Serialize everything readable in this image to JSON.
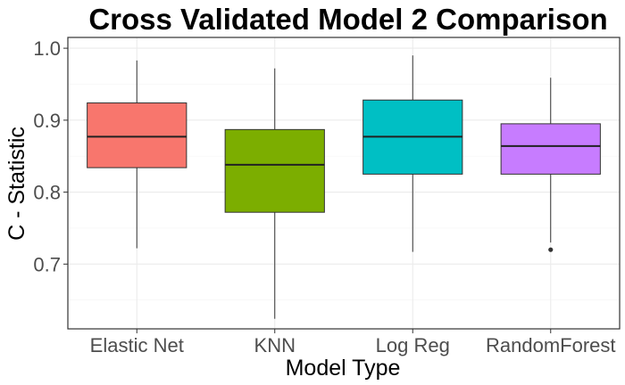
{
  "chart_data": {
    "type": "boxplot",
    "title": "Cross Validated Model 2 Comparison",
    "xlabel": "Model Type",
    "ylabel": "C - Statistic",
    "ylim": [
      0.61,
      1.015
    ],
    "yticks": [
      0.7,
      0.8,
      0.9,
      1.0
    ],
    "ytick_labels": [
      "0.7",
      "0.8",
      "0.9",
      "1.0"
    ],
    "grid": true,
    "legend": "none",
    "categories": [
      "Elastic Net",
      "KNN",
      "Log Reg",
      "RandomForest"
    ],
    "series": [
      {
        "category": "Elastic Net",
        "color": "#F8766D",
        "whisker_low": 0.722,
        "q1": 0.834,
        "median": 0.877,
        "q3": 0.924,
        "whisker_high": 0.983,
        "outliers": []
      },
      {
        "category": "KNN",
        "color": "#7CAE00",
        "whisker_low": 0.624,
        "q1": 0.772,
        "median": 0.838,
        "q3": 0.887,
        "whisker_high": 0.972,
        "outliers": []
      },
      {
        "category": "Log Reg",
        "color": "#00BFC4",
        "whisker_low": 0.717,
        "q1": 0.825,
        "median": 0.877,
        "q3": 0.928,
        "whisker_high": 0.99,
        "outliers": []
      },
      {
        "category": "RandomForest",
        "color": "#C77CFF",
        "whisker_low": 0.73,
        "q1": 0.825,
        "median": 0.864,
        "q3": 0.895,
        "whisker_high": 0.959,
        "outliers": [
          0.72
        ]
      }
    ]
  }
}
